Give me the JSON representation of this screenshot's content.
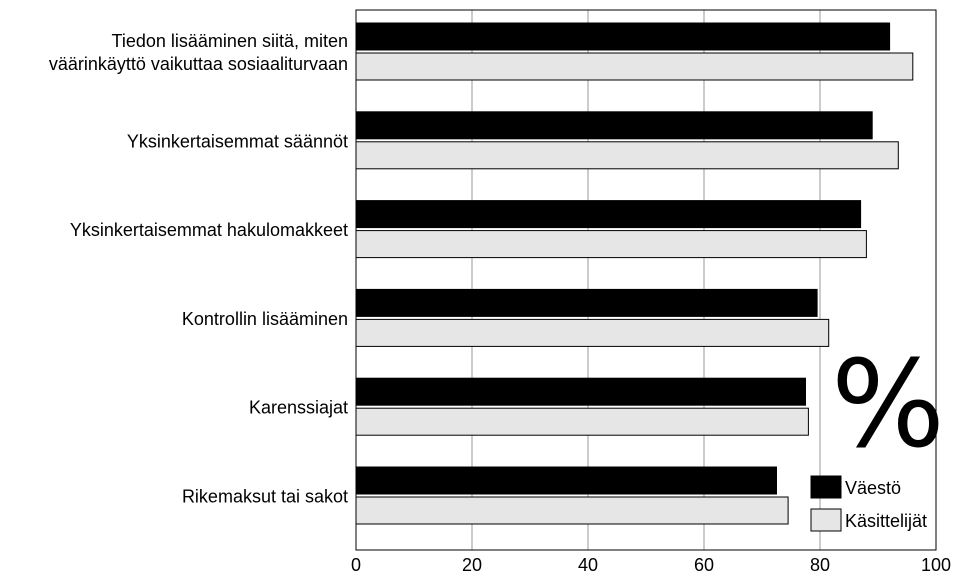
{
  "chart_data": {
    "type": "bar",
    "orientation": "horizontal",
    "categories": [
      [
        "Tiedon lisääminen siitä, miten",
        "väärinkäyttö vaikuttaa sosiaaliturvaan"
      ],
      [
        "Yksinkertaisemmat säännöt"
      ],
      [
        "Yksinkertaisemmat hakulomakkeet"
      ],
      [
        "Kontrollin lisääminen"
      ],
      [
        "Karenssiajat"
      ],
      [
        "Rikemaksut tai sakot"
      ]
    ],
    "series": [
      {
        "name": "Väestö",
        "color": "#000000",
        "values": [
          92,
          89,
          87,
          79.5,
          77.5,
          72.5
        ]
      },
      {
        "name": "Käsittelijät",
        "color": "#e6e6e6",
        "values": [
          96,
          93.5,
          88,
          81.5,
          78,
          74.5
        ]
      }
    ],
    "xlim": [
      0,
      100
    ],
    "xticks": [
      "0",
      "20",
      "40",
      "60",
      "80",
      "100"
    ],
    "grid": "vertical",
    "legend_position": "bottom-right",
    "unit_symbol": "%",
    "unit_symbol_color": "#9a9a9a"
  }
}
